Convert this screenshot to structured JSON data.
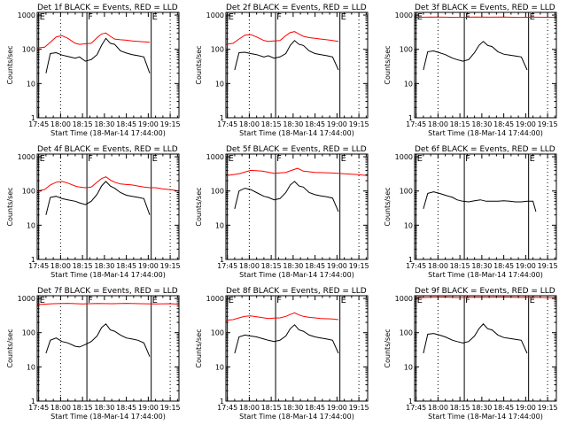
{
  "figure": {
    "type": "grid-of-line-plots",
    "rows": 3,
    "cols": 3,
    "xlabel": "Start Time (18-Mar-14 17:44:00)",
    "ylabel": "Counts/sec",
    "y_scale": "log",
    "ylim": [
      1,
      1200
    ],
    "y_ticks": [
      1,
      10,
      100,
      1000
    ],
    "y_tick_labels": [
      "1",
      "10",
      "100",
      "1000"
    ],
    "x_tick_labels": [
      "17:45",
      "18:00",
      "18:15",
      "18:30",
      "18:45",
      "19:00",
      "19:15"
    ],
    "x_tick_minutes": [
      0,
      15,
      30,
      45,
      60,
      75,
      90
    ],
    "xlim_minutes": [
      -1,
      96
    ],
    "colors": {
      "events": "#000000",
      "lld": "#ff0000",
      "axes": "#000000"
    }
  },
  "chart_data": [
    {
      "type": "line",
      "title": "Det 1f BLACK = Events, RED = LLD",
      "markers": [
        {
          "label": "E",
          "minute": 0
        },
        {
          "label": "F",
          "minute": 33
        },
        {
          "label": "E",
          "minute": 77
        }
      ],
      "series": [
        {
          "name": "Events",
          "x": [
            5,
            8,
            12,
            16,
            20,
            25,
            28,
            32,
            36,
            40,
            43,
            46,
            49,
            52,
            56,
            60,
            64,
            68,
            72,
            76
          ],
          "y": [
            20,
            75,
            80,
            68,
            62,
            55,
            60,
            45,
            50,
            70,
            130,
            210,
            150,
            140,
            90,
            78,
            70,
            65,
            60,
            20
          ]
        },
        {
          "name": "LLD",
          "x": [
            -1,
            4,
            8,
            12,
            16,
            20,
            25,
            28,
            32,
            36,
            40,
            43,
            46,
            49,
            52,
            56,
            60,
            64,
            68,
            72,
            76
          ],
          "y": [
            110,
            115,
            160,
            230,
            250,
            210,
            150,
            140,
            145,
            150,
            220,
            280,
            300,
            240,
            200,
            190,
            185,
            175,
            170,
            165,
            160
          ]
        }
      ]
    },
    {
      "type": "line",
      "title": "Det 2f BLACK = Events, RED = LLD",
      "markers": [
        {
          "label": "E",
          "minute": 0
        },
        {
          "label": "F",
          "minute": 33
        },
        {
          "label": "E",
          "minute": 77
        }
      ],
      "series": [
        {
          "name": "Events",
          "x": [
            5,
            8,
            12,
            16,
            20,
            25,
            28,
            32,
            36,
            40,
            43,
            46,
            49,
            52,
            56,
            60,
            64,
            68,
            72,
            76
          ],
          "y": [
            25,
            80,
            82,
            75,
            70,
            60,
            65,
            55,
            60,
            75,
            130,
            180,
            140,
            130,
            90,
            75,
            70,
            65,
            60,
            25
          ]
        },
        {
          "name": "LLD",
          "x": [
            -1,
            4,
            8,
            12,
            16,
            20,
            25,
            28,
            32,
            36,
            40,
            43,
            46,
            49,
            52,
            56,
            60,
            64,
            68,
            72,
            76
          ],
          "y": [
            140,
            150,
            200,
            260,
            270,
            230,
            180,
            170,
            175,
            180,
            250,
            310,
            330,
            280,
            240,
            220,
            210,
            200,
            190,
            180,
            170
          ]
        }
      ]
    },
    {
      "type": "line",
      "title": "Det 3f BLACK = Events, RED = LLD",
      "markers": [
        {
          "label": "E",
          "minute": 0
        },
        {
          "label": "F",
          "minute": 33
        },
        {
          "label": "E",
          "minute": 77
        }
      ],
      "series": [
        {
          "name": "Events",
          "x": [
            5,
            8,
            12,
            16,
            20,
            25,
            28,
            32,
            36,
            40,
            43,
            46,
            49,
            52,
            56,
            60,
            64,
            68,
            72,
            76
          ],
          "y": [
            25,
            85,
            90,
            80,
            70,
            55,
            50,
            45,
            50,
            80,
            130,
            170,
            130,
            120,
            85,
            72,
            68,
            64,
            60,
            25
          ]
        },
        {
          "name": "LLD",
          "x": [
            -1,
            10,
            20,
            30,
            40,
            50,
            60,
            70,
            80,
            90,
            96
          ],
          "y": [
            860,
            880,
            870,
            860,
            880,
            870,
            875,
            860,
            870,
            865,
            860
          ]
        }
      ]
    },
    {
      "type": "line",
      "title": "Det 4f BLACK = Events, RED = LLD",
      "markers": [
        {
          "label": "E",
          "minute": 0
        },
        {
          "label": "F",
          "minute": 33
        },
        {
          "label": "E",
          "minute": 77
        }
      ],
      "series": [
        {
          "name": "Events",
          "x": [
            5,
            8,
            12,
            16,
            20,
            25,
            28,
            32,
            36,
            40,
            43,
            46,
            49,
            52,
            56,
            60,
            64,
            68,
            72,
            76
          ],
          "y": [
            20,
            65,
            70,
            60,
            55,
            50,
            45,
            40,
            50,
            80,
            140,
            190,
            140,
            120,
            90,
            75,
            70,
            65,
            60,
            20
          ]
        },
        {
          "name": "LLD",
          "x": [
            -1,
            4,
            8,
            12,
            16,
            20,
            25,
            28,
            32,
            36,
            40,
            43,
            46,
            49,
            52,
            56,
            60,
            64,
            68,
            72,
            76,
            80,
            85,
            90,
            96
          ],
          "y": [
            100,
            110,
            150,
            180,
            190,
            170,
            140,
            130,
            125,
            130,
            180,
            230,
            260,
            210,
            180,
            160,
            155,
            150,
            140,
            130,
            125,
            125,
            115,
            110,
            100
          ]
        }
      ]
    },
    {
      "type": "line",
      "title": "Det 5f BLACK = Events, RED = LLD",
      "markers": [
        {
          "label": "E",
          "minute": 0
        },
        {
          "label": "F",
          "minute": 33
        },
        {
          "label": "E",
          "minute": 77
        }
      ],
      "series": [
        {
          "name": "Events",
          "x": [
            5,
            8,
            12,
            16,
            20,
            25,
            28,
            32,
            36,
            40,
            43,
            46,
            49,
            52,
            56,
            60,
            64,
            68,
            72,
            76
          ],
          "y": [
            30,
            100,
            120,
            110,
            90,
            70,
            65,
            55,
            60,
            90,
            150,
            190,
            140,
            130,
            90,
            78,
            72,
            68,
            62,
            25
          ]
        },
        {
          "name": "LLD",
          "x": [
            -1,
            8,
            16,
            24,
            32,
            40,
            44,
            48,
            52,
            60,
            70,
            80,
            90,
            96
          ],
          "y": [
            280,
            320,
            400,
            380,
            330,
            350,
            400,
            460,
            380,
            350,
            340,
            320,
            300,
            280
          ]
        }
      ]
    },
    {
      "type": "line",
      "title": "Det 6f BLACK = Events, RED = LLD",
      "markers": [
        {
          "label": "E",
          "minute": 0
        },
        {
          "label": "F",
          "minute": 33
        },
        {
          "label": "E",
          "minute": 77
        }
      ],
      "series": [
        {
          "name": "Events",
          "x": [
            5,
            8,
            12,
            16,
            20,
            25,
            28,
            32,
            36,
            40,
            44,
            48,
            52,
            56,
            60,
            64,
            68,
            72,
            76,
            80,
            82
          ],
          "y": [
            30,
            85,
            95,
            85,
            75,
            65,
            55,
            50,
            48,
            52,
            55,
            50,
            50,
            50,
            52,
            50,
            48,
            48,
            50,
            50,
            25
          ]
        },
        {
          "name": "LLD",
          "x": [],
          "y": []
        }
      ]
    },
    {
      "type": "line",
      "title": "Det 7f BLACK = Events, RED = LLD",
      "markers": [
        {
          "label": "E",
          "minute": 0
        },
        {
          "label": "F",
          "minute": 33
        },
        {
          "label": "E",
          "minute": 77
        }
      ],
      "series": [
        {
          "name": "Events",
          "x": [
            5,
            8,
            12,
            16,
            20,
            25,
            28,
            32,
            36,
            40,
            43,
            46,
            49,
            52,
            56,
            60,
            64,
            68,
            72,
            76
          ],
          "y": [
            25,
            60,
            70,
            55,
            50,
            40,
            38,
            45,
            55,
            80,
            140,
            180,
            120,
            110,
            85,
            70,
            65,
            60,
            50,
            20
          ]
        },
        {
          "name": "LLD",
          "x": [
            -1,
            10,
            20,
            30,
            40,
            50,
            60,
            70,
            80,
            90,
            96
          ],
          "y": [
            660,
            700,
            720,
            690,
            710,
            700,
            720,
            700,
            690,
            700,
            680
          ]
        }
      ]
    },
    {
      "type": "line",
      "title": "Det 8f BLACK = Events, RED = LLD",
      "markers": [
        {
          "label": "E",
          "minute": 0
        },
        {
          "label": "F",
          "minute": 33
        },
        {
          "label": "E",
          "minute": 77
        }
      ],
      "series": [
        {
          "name": "Events",
          "x": [
            5,
            8,
            12,
            16,
            20,
            25,
            28,
            32,
            36,
            40,
            43,
            46,
            49,
            52,
            56,
            60,
            64,
            68,
            72,
            76
          ],
          "y": [
            25,
            75,
            85,
            80,
            75,
            65,
            60,
            55,
            60,
            80,
            130,
            170,
            120,
            110,
            85,
            75,
            70,
            65,
            60,
            25
          ]
        },
        {
          "name": "LLD",
          "x": [
            -1,
            4,
            8,
            12,
            16,
            20,
            25,
            28,
            32,
            36,
            40,
            43,
            46,
            49,
            52,
            56,
            60,
            64,
            68,
            72,
            76
          ],
          "y": [
            230,
            240,
            270,
            300,
            310,
            290,
            270,
            260,
            265,
            270,
            300,
            340,
            380,
            330,
            300,
            280,
            270,
            260,
            255,
            250,
            240
          ]
        }
      ]
    },
    {
      "type": "line",
      "title": "Det 9f BLACK = Events, RED = LLD",
      "markers": [
        {
          "label": "E",
          "minute": 0
        },
        {
          "label": "F",
          "minute": 33
        },
        {
          "label": "E",
          "minute": 77
        }
      ],
      "series": [
        {
          "name": "Events",
          "x": [
            5,
            8,
            12,
            16,
            20,
            25,
            28,
            32,
            36,
            40,
            43,
            46,
            49,
            52,
            56,
            60,
            64,
            68,
            72,
            76
          ],
          "y": [
            25,
            90,
            95,
            85,
            75,
            60,
            55,
            50,
            55,
            80,
            130,
            180,
            130,
            120,
            85,
            72,
            68,
            64,
            60,
            25
          ]
        },
        {
          "name": "LLD",
          "x": [
            -1,
            10,
            20,
            30,
            40,
            50,
            60,
            70,
            80,
            90,
            96
          ],
          "y": [
            1050,
            1080,
            1100,
            1060,
            1090,
            1080,
            1100,
            1070,
            1080,
            1060,
            1050
          ]
        }
      ]
    }
  ]
}
